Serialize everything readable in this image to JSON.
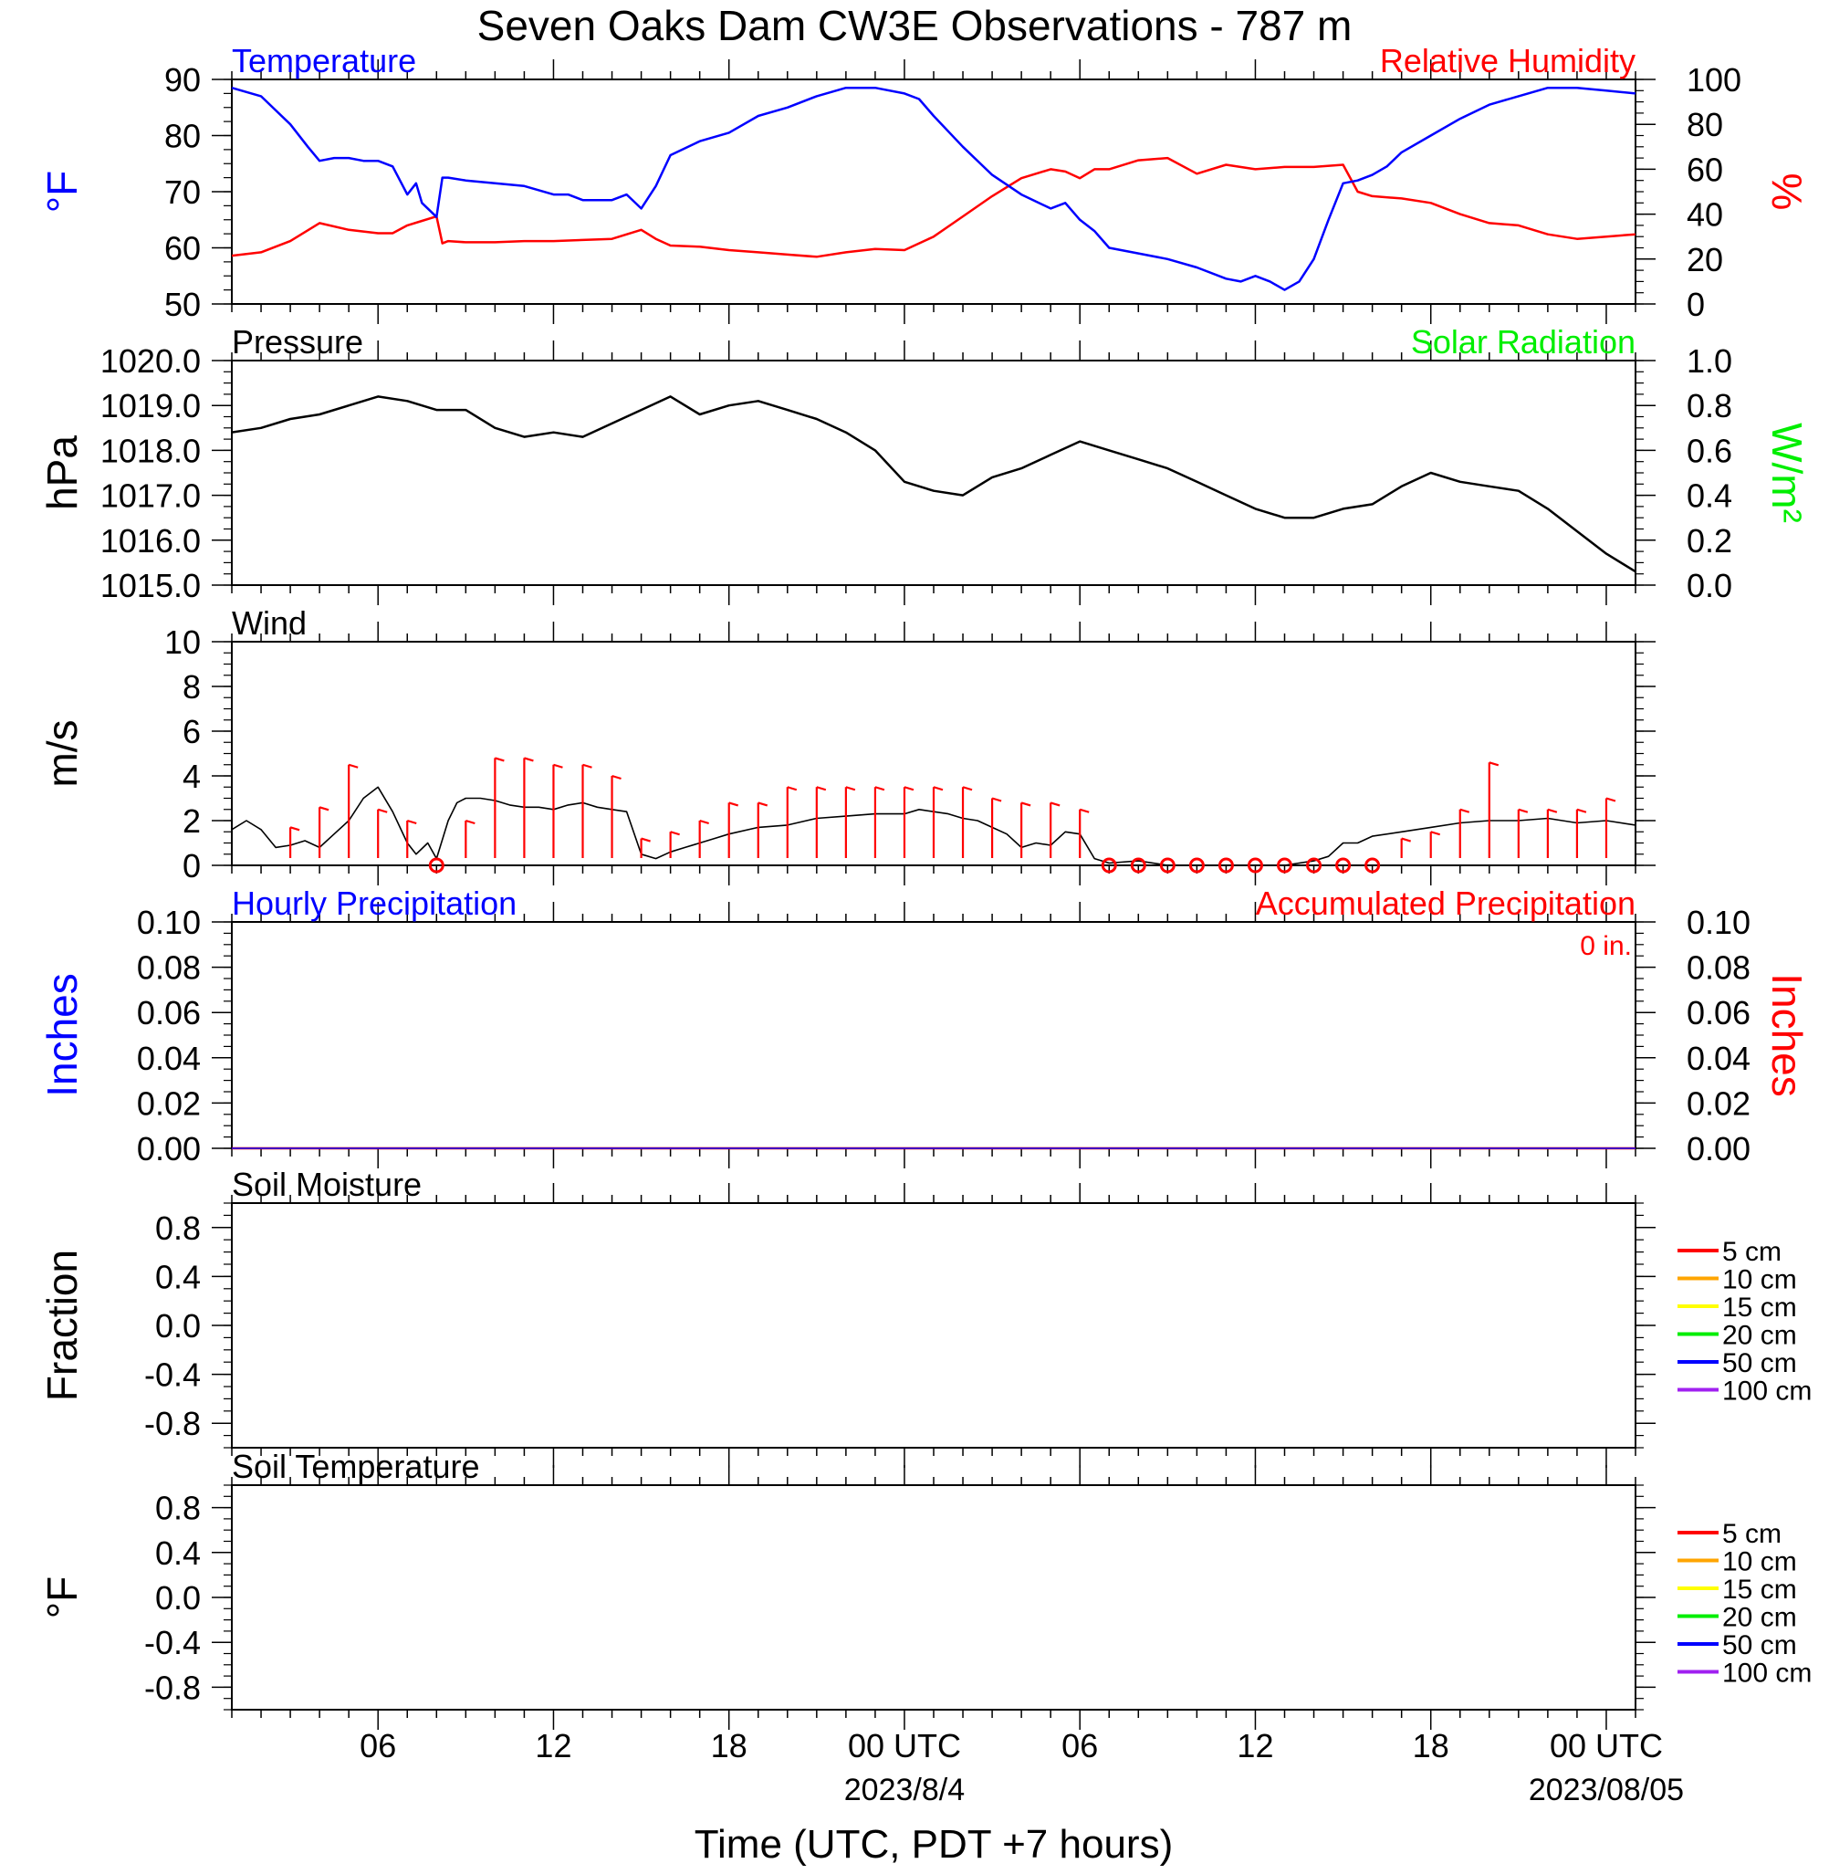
{
  "title": "Seven Oaks Dam CW3E Observations - 787 m",
  "xaxis": {
    "label": "Time (UTC, PDT +7 hours)",
    "ticks": [
      {
        "hour": 6,
        "label": "06"
      },
      {
        "hour": 12,
        "label": "12"
      },
      {
        "hour": 18,
        "label": "18"
      },
      {
        "hour": 24,
        "label": "00 UTC"
      },
      {
        "hour": 30,
        "label": "06"
      },
      {
        "hour": 36,
        "label": "12"
      },
      {
        "hour": 42,
        "label": "18"
      },
      {
        "hour": 48,
        "label": "00 UTC"
      }
    ],
    "date_labels": [
      {
        "hour": 24,
        "label": "2023/8/4"
      },
      {
        "hour": 48,
        "label": "2023/08/05"
      }
    ],
    "range_hours": [
      1,
      49
    ]
  },
  "colors": {
    "temperature": "#0000ff",
    "humidity": "#ff0000",
    "pressure": "#000000",
    "solar": "#00ee00",
    "wind": "#000000",
    "barb": "#ff0000",
    "hourly_precip": "#0000ff",
    "accum_precip": "#ff0000",
    "soil": [
      "#ff0000",
      "#ffa500",
      "#ffff00",
      "#00ee00",
      "#0000ff",
      "#a020f0"
    ]
  },
  "panels": {
    "temp_rh": {
      "left_title": "Temperature",
      "right_title": "Relative Humidity",
      "left_unit": "°F",
      "right_unit": "%",
      "left_ticks": [
        "90",
        "80",
        "70",
        "60",
        "50"
      ],
      "right_ticks": [
        "100",
        "80",
        "60",
        "40",
        "20",
        "0"
      ]
    },
    "pressure": {
      "left_title": "Pressure",
      "right_title": "Solar Radiation",
      "left_unit": "hPa",
      "right_unit": "W/m²",
      "left_ticks": [
        "1020.0",
        "1019.0",
        "1018.0",
        "1017.0",
        "1016.0",
        "1015.0"
      ],
      "right_ticks": [
        "1.0",
        "0.8",
        "0.6",
        "0.4",
        "0.2",
        "0.0"
      ]
    },
    "wind": {
      "left_title": "Wind",
      "left_unit": "m/s",
      "left_ticks": [
        "10",
        "8",
        "6",
        "4",
        "2",
        "0"
      ]
    },
    "precip": {
      "left_title": "Hourly Precipitation",
      "right_title": "Accumulated Precipitation",
      "accum_note": "0 in.",
      "left_unit": "Inches",
      "right_unit": "Inches",
      "left_ticks": [
        "0.10",
        "0.08",
        "0.06",
        "0.04",
        "0.02",
        "0.00"
      ],
      "right_ticks": [
        "0.10",
        "0.08",
        "0.06",
        "0.04",
        "0.02",
        "0.00"
      ]
    },
    "soil_moisture": {
      "left_title": "Soil Moisture",
      "left_unit": "Fraction",
      "left_ticks": [
        "0.8",
        "0.4",
        "0.0",
        "-0.4",
        "-0.8"
      ],
      "legend": [
        "5 cm",
        "10 cm",
        "15 cm",
        "20 cm",
        "50 cm",
        "100 cm"
      ]
    },
    "soil_temperature": {
      "left_title": "Soil Temperature",
      "left_unit": "°F",
      "left_ticks": [
        "0.8",
        "0.4",
        "0.0",
        "-0.4",
        "-0.8"
      ],
      "legend": [
        "5 cm",
        "10 cm",
        "15 cm",
        "20 cm",
        "50 cm",
        "100 cm"
      ]
    }
  },
  "chart_data": [
    {
      "type": "line",
      "panel": "temp_rh",
      "title": "Temperature / Relative Humidity",
      "x_units": "hours since 2023-08-03 00 UTC",
      "series": [
        {
          "name": "Temperature",
          "axis": "left",
          "ylim": [
            50,
            90
          ],
          "x": [
            1,
            2,
            3,
            3.6,
            4,
            4.5,
            5,
            5.5,
            6,
            6.5,
            7,
            7.3,
            7.5,
            8,
            8.2,
            8.4,
            9,
            10,
            11,
            12,
            12.5,
            13,
            14,
            14.5,
            15,
            15.5,
            16,
            17,
            18,
            19,
            20,
            21,
            22,
            23,
            24,
            24.5,
            25,
            26,
            27,
            28,
            29,
            29.5,
            30,
            30.5,
            31,
            32,
            33,
            34,
            35,
            35.5,
            36,
            36.5,
            37,
            37.5,
            38,
            38.5,
            39,
            39.5,
            40,
            40.5,
            41,
            42,
            43,
            44,
            45,
            46,
            47,
            48,
            49
          ],
          "y": [
            88.5,
            87,
            82,
            78,
            75.5,
            76,
            76,
            75.5,
            75.5,
            74.5,
            69.5,
            71.5,
            68,
            65.5,
            72.5,
            72.5,
            72,
            71.5,
            71,
            69.5,
            69.5,
            68.5,
            68.5,
            69.5,
            67,
            71,
            76.5,
            79,
            80.5,
            83.5,
            85,
            87,
            88.5,
            88.5,
            87.5,
            86.5,
            83.5,
            78,
            73,
            69.5,
            67,
            68,
            65,
            63,
            60,
            59,
            58,
            56.5,
            54.5,
            54,
            55,
            54,
            52.5,
            54,
            58,
            65,
            71.5,
            72,
            73,
            74.5,
            77,
            80,
            83,
            85.5,
            87,
            88.5,
            88.5,
            88,
            87.5
          ]
        },
        {
          "name": "Relative Humidity",
          "axis": "right",
          "ylim": [
            0,
            100
          ],
          "x": [
            1,
            2,
            3,
            4,
            5,
            6,
            6.5,
            7,
            7.5,
            8,
            8.2,
            8.4,
            9,
            10,
            11,
            12,
            13,
            14,
            15,
            15.5,
            16,
            17,
            18,
            19,
            20,
            21,
            22,
            23,
            24,
            25,
            26,
            27,
            28,
            29,
            29.5,
            30,
            30.5,
            31,
            32,
            33,
            34,
            35,
            36,
            37,
            38,
            39,
            39.5,
            40,
            41,
            42,
            43,
            44,
            45,
            46,
            47,
            48,
            49
          ],
          "y": [
            21.5,
            23,
            28,
            36,
            33,
            31.5,
            31.5,
            35,
            37,
            39,
            27,
            28,
            27.5,
            27.5,
            28,
            28,
            28.5,
            29,
            33,
            29,
            26,
            25.5,
            24,
            23,
            22,
            21,
            23,
            24.5,
            24,
            30,
            39,
            48,
            56,
            60,
            59,
            56,
            60,
            60,
            64,
            65,
            58,
            62,
            60,
            61,
            61,
            62,
            50,
            48,
            47,
            45,
            40,
            36,
            35,
            31,
            29,
            30,
            31
          ]
        }
      ]
    },
    {
      "type": "line",
      "panel": "pressure",
      "title": "Pressure",
      "x_units": "hours since 2023-08-03 00 UTC",
      "series": [
        {
          "name": "Pressure",
          "axis": "left",
          "ylim": [
            1015.0,
            1020.0
          ],
          "x": [
            1,
            2,
            3,
            4,
            5,
            6,
            7,
            8,
            9,
            10,
            11,
            12,
            13,
            14,
            15,
            16,
            17,
            18,
            19,
            20,
            21,
            22,
            23,
            24,
            25,
            26,
            27,
            28,
            29,
            30,
            31,
            32,
            33,
            34,
            35,
            36,
            37,
            38,
            39,
            40,
            41,
            42,
            43,
            44,
            45,
            46,
            47,
            48,
            49
          ],
          "y": [
            1018.4,
            1018.5,
            1018.7,
            1018.8,
            1019.0,
            1019.2,
            1019.1,
            1018.9,
            1018.9,
            1018.5,
            1018.3,
            1018.4,
            1018.3,
            1018.6,
            1018.9,
            1019.2,
            1018.8,
            1019.0,
            1019.1,
            1018.9,
            1018.7,
            1018.4,
            1018.0,
            1017.3,
            1017.1,
            1017.0,
            1017.4,
            1017.6,
            1017.9,
            1018.2,
            1018.0,
            1017.8,
            1017.6,
            1017.3,
            1017.0,
            1016.7,
            1016.5,
            1016.5,
            1016.7,
            1016.8,
            1017.2,
            1017.5,
            1017.3,
            1017.2,
            1017.1,
            1016.7,
            1016.2,
            1015.7,
            1015.3
          ]
        },
        {
          "name": "Solar Radiation",
          "axis": "right",
          "ylim": [
            0.0,
            1.0
          ],
          "x": [],
          "y": []
        }
      ]
    },
    {
      "type": "line",
      "panel": "wind",
      "title": "Wind",
      "x_units": "hours since 2023-08-03 00 UTC",
      "series": [
        {
          "name": "Wind",
          "axis": "left",
          "ylim": [
            0,
            10
          ],
          "x": [
            1,
            1.5,
            2,
            2.5,
            3,
            3.5,
            4,
            4.5,
            5,
            5.5,
            6,
            6.5,
            7,
            7.3,
            7.7,
            8,
            8.4,
            8.7,
            9,
            9.5,
            10,
            10.5,
            11,
            11.5,
            12,
            12.5,
            13,
            13.5,
            14,
            14.5,
            15,
            15.5,
            16,
            16.5,
            17,
            17.5,
            18,
            19,
            20,
            21,
            22,
            23,
            24,
            24.5,
            25,
            25.5,
            26,
            26.5,
            27,
            27.5,
            28,
            28.5,
            29,
            29.5,
            30,
            30.5,
            31,
            32,
            33,
            34,
            35,
            36,
            37,
            38,
            38.5,
            39,
            39.5,
            40,
            41,
            42,
            43,
            44,
            45,
            46,
            47,
            48,
            49
          ],
          "y": [
            1.6,
            2.0,
            1.6,
            0.8,
            0.9,
            1.1,
            0.8,
            1.4,
            2.0,
            3.0,
            3.5,
            2.4,
            1.0,
            0.5,
            1.0,
            0.3,
            2.0,
            2.8,
            3.0,
            3.0,
            2.9,
            2.7,
            2.6,
            2.6,
            2.5,
            2.7,
            2.8,
            2.6,
            2.5,
            2.4,
            0.5,
            0.3,
            0.6,
            0.8,
            1.0,
            1.2,
            1.4,
            1.7,
            1.8,
            2.1,
            2.2,
            2.3,
            2.3,
            2.5,
            2.4,
            2.3,
            2.1,
            2.0,
            1.7,
            1.4,
            0.8,
            1.0,
            0.9,
            1.5,
            1.4,
            0.3,
            0.1,
            0.2,
            0.0,
            0.0,
            0.0,
            0.0,
            0.0,
            0.2,
            0.4,
            1.0,
            1.0,
            1.3,
            1.5,
            1.7,
            1.9,
            2.0,
            2.0,
            2.1,
            1.9,
            2.0,
            1.8
          ]
        },
        {
          "name": "Wind barbs",
          "hours": [
            3,
            4,
            5,
            6,
            7,
            8,
            9,
            10,
            11,
            12,
            13,
            14,
            15,
            16,
            17,
            18,
            19,
            20,
            21,
            22,
            23,
            24,
            25,
            26,
            27,
            28,
            29,
            30,
            31,
            32,
            33,
            34,
            35,
            36,
            37,
            38,
            39,
            40,
            41,
            42,
            43,
            44,
            45,
            46,
            47,
            48
          ],
          "speeds": [
            1.7,
            2.6,
            4.5,
            2.5,
            2.0,
            0.0,
            2.0,
            4.8,
            4.8,
            4.5,
            4.5,
            4.0,
            1.2,
            1.5,
            2.0,
            2.8,
            2.8,
            3.5,
            3.5,
            3.5,
            3.5,
            3.5,
            3.5,
            3.5,
            3.0,
            2.8,
            2.8,
            2.5,
            0.0,
            0.0,
            0.0,
            0.0,
            0.0,
            0.0,
            0.0,
            0.0,
            0.0,
            0.0,
            1.2,
            1.5,
            2.5,
            4.6,
            2.5,
            2.5,
            2.5,
            3.0
          ]
        }
      ]
    },
    {
      "type": "line",
      "panel": "precip",
      "title": "Precipitation",
      "x_units": "hours since 2023-08-03 00 UTC",
      "series": [
        {
          "name": "Hourly Precipitation",
          "axis": "left",
          "ylim": [
            0,
            0.1
          ],
          "x": [
            1,
            49
          ],
          "y": [
            0,
            0
          ]
        },
        {
          "name": "Accumulated Precipitation",
          "axis": "right",
          "ylim": [
            0,
            0.1
          ],
          "x": [
            1,
            49
          ],
          "y": [
            0,
            0
          ]
        }
      ]
    },
    {
      "type": "line",
      "panel": "soil_moisture",
      "title": "Soil Moisture",
      "ylim": [
        -1.0,
        1.0
      ],
      "series": [
        {
          "name": "5 cm",
          "x": [],
          "y": []
        },
        {
          "name": "10 cm",
          "x": [],
          "y": []
        },
        {
          "name": "15 cm",
          "x": [],
          "y": []
        },
        {
          "name": "20 cm",
          "x": [],
          "y": []
        },
        {
          "name": "50 cm",
          "x": [],
          "y": []
        },
        {
          "name": "100 cm",
          "x": [],
          "y": []
        }
      ]
    },
    {
      "type": "line",
      "panel": "soil_temperature",
      "title": "Soil Temperature",
      "ylim": [
        -1.0,
        1.0
      ],
      "series": [
        {
          "name": "5 cm",
          "x": [],
          "y": []
        },
        {
          "name": "10 cm",
          "x": [],
          "y": []
        },
        {
          "name": "15 cm",
          "x": [],
          "y": []
        },
        {
          "name": "20 cm",
          "x": [],
          "y": []
        },
        {
          "name": "50 cm",
          "x": [],
          "y": []
        },
        {
          "name": "100 cm",
          "x": [],
          "y": []
        }
      ]
    }
  ]
}
